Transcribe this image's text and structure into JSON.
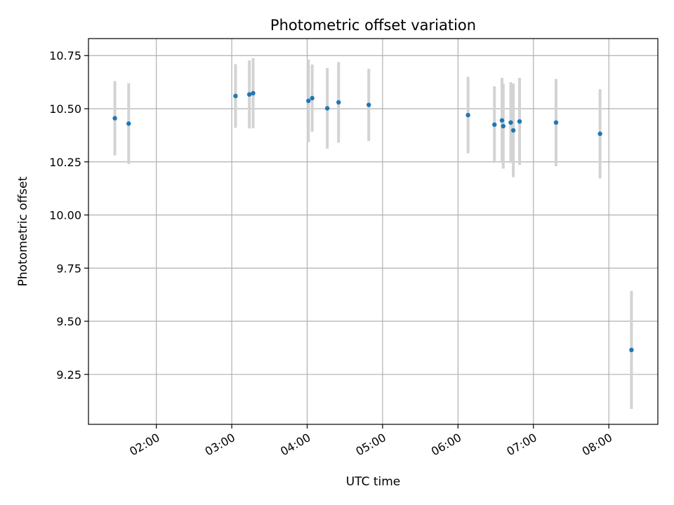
{
  "chart_data": {
    "type": "scatter",
    "title": "Photometric offset variation",
    "xlabel": "UTC time",
    "ylabel": "Photometric offset",
    "xlim": [
      "01:06",
      "08:39"
    ],
    "ylim": [
      9.015,
      10.83
    ],
    "grid": true,
    "x_ticks": [
      "02:00",
      "03:00",
      "04:00",
      "05:00",
      "06:00",
      "07:00",
      "08:00"
    ],
    "y_ticks": [
      9.25,
      9.5,
      9.75,
      10.0,
      10.25,
      10.5,
      10.75
    ],
    "colors": {
      "point": "#1f77b4",
      "errorbar": "#d3d3d3",
      "grid": "#b0b0b0"
    },
    "series": [
      {
        "points": [
          {
            "x": "01:27",
            "y": 10.455,
            "err": 0.175
          },
          {
            "x": "01:38",
            "y": 10.43,
            "err": 0.19
          },
          {
            "x": "03:03",
            "y": 10.56,
            "err": 0.15
          },
          {
            "x": "03:14",
            "y": 10.567,
            "err": 0.16
          },
          {
            "x": "03:17",
            "y": 10.573,
            "err": 0.165
          },
          {
            "x": "04:01",
            "y": 10.537,
            "err": 0.195
          },
          {
            "x": "04:04",
            "y": 10.55,
            "err": 0.158
          },
          {
            "x": "04:16",
            "y": 10.502,
            "err": 0.19
          },
          {
            "x": "04:25",
            "y": 10.53,
            "err": 0.19
          },
          {
            "x": "04:49",
            "y": 10.518,
            "err": 0.17
          },
          {
            "x": "06:08",
            "y": 10.47,
            "err": 0.18
          },
          {
            "x": "06:29",
            "y": 10.425,
            "err": 0.18
          },
          {
            "x": "06:35",
            "y": 10.445,
            "err": 0.2
          },
          {
            "x": "06:36",
            "y": 10.418,
            "err": 0.2
          },
          {
            "x": "06:42",
            "y": 10.435,
            "err": 0.19
          },
          {
            "x": "06:44",
            "y": 10.398,
            "err": 0.22
          },
          {
            "x": "06:49",
            "y": 10.44,
            "err": 0.205
          },
          {
            "x": "07:18",
            "y": 10.435,
            "err": 0.205
          },
          {
            "x": "07:53",
            "y": 10.382,
            "err": 0.21
          },
          {
            "x": "08:18",
            "y": 9.365,
            "err": 0.278
          }
        ]
      }
    ]
  }
}
